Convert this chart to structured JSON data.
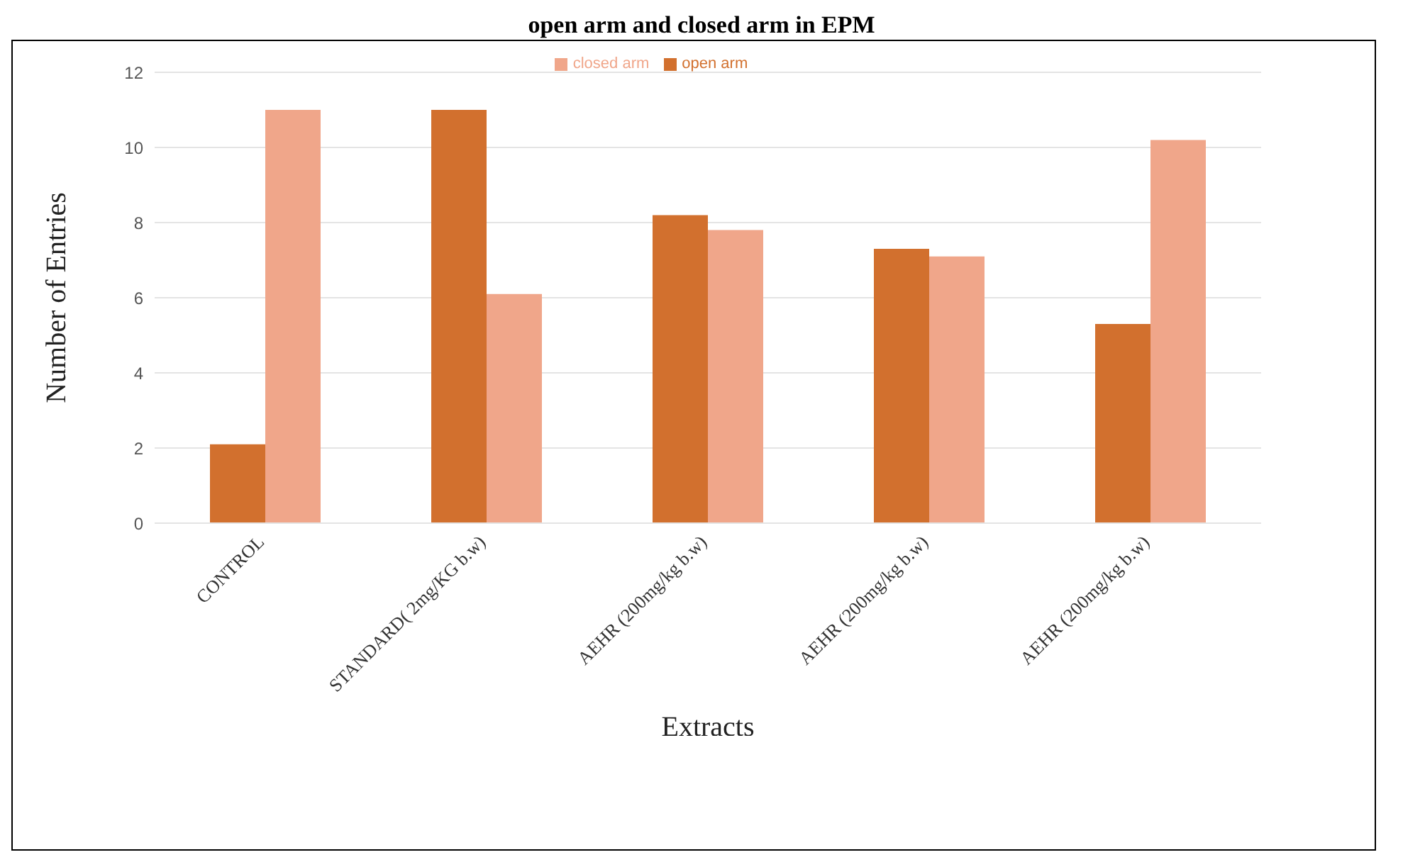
{
  "chart_data": {
    "type": "bar",
    "title": "open arm and closed arm in EPM",
    "xlabel": "Extracts",
    "ylabel": "Number of Entries",
    "categories": [
      "CONTROL",
      "STANDARD( 2mg/KG b.w)",
      "AEHR (200mg/kg b.w)",
      "AEHR (200mg/kg b.w)",
      "AEHR (200mg/kg b.w)"
    ],
    "series": [
      {
        "name": "open arm",
        "color": "#d2702e",
        "values": [
          2.1,
          11,
          8.2,
          7.3,
          5.3
        ]
      },
      {
        "name": "closed arm",
        "color": "#f0a68a",
        "values": [
          11,
          6.1,
          7.8,
          7.1,
          10.2
        ]
      }
    ],
    "ylim": [
      0,
      12
    ],
    "yticks": [
      0,
      2,
      4,
      6,
      8,
      10,
      12
    ],
    "grid": "y",
    "legend": "top"
  }
}
